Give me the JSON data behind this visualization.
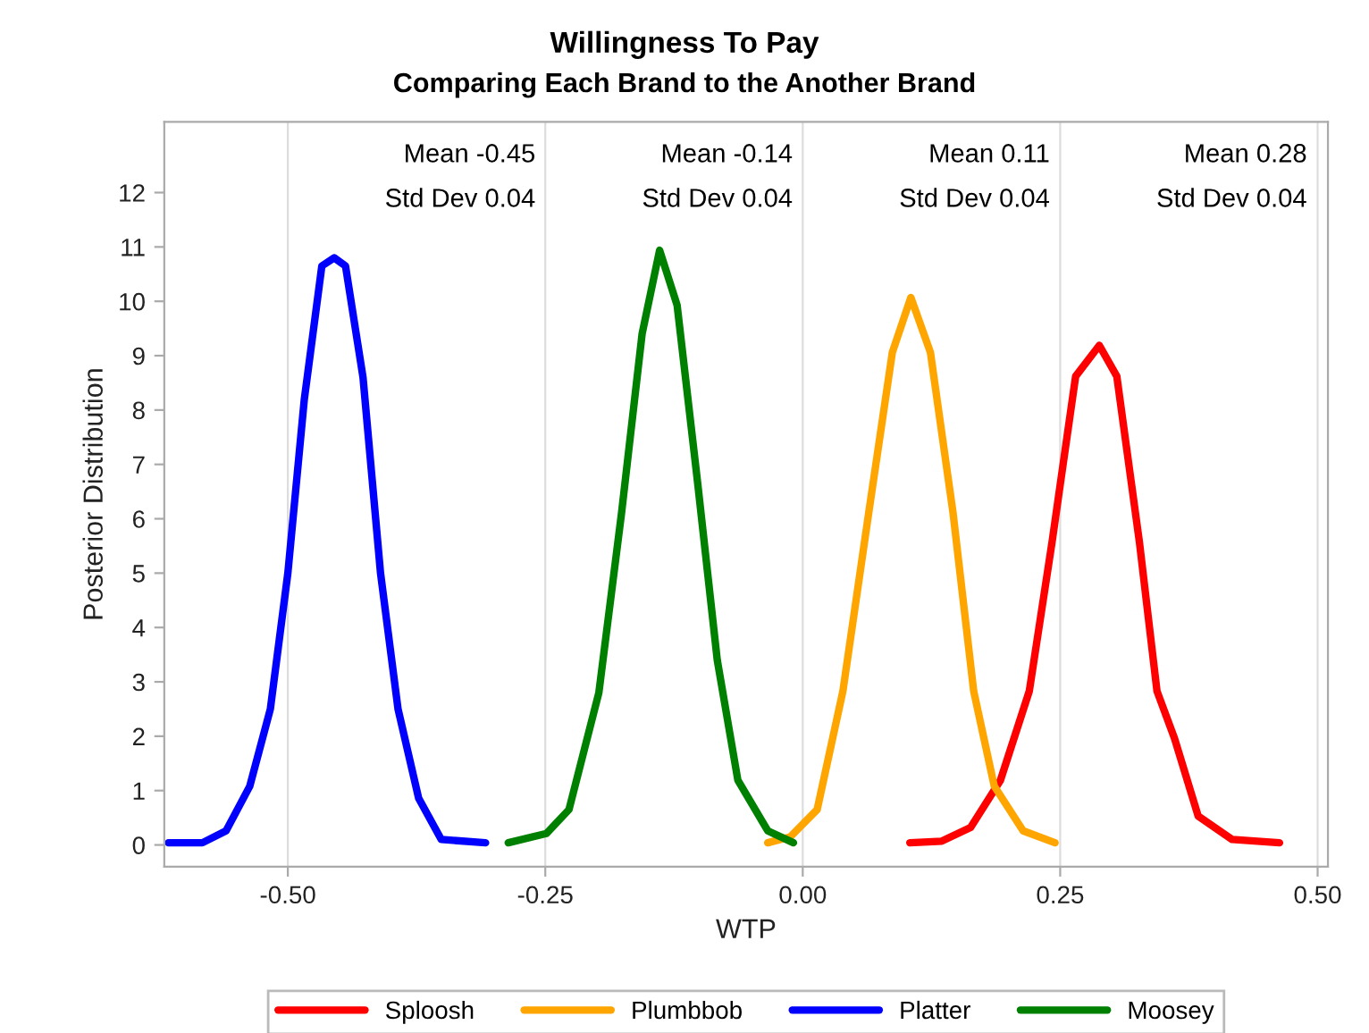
{
  "chart_data": {
    "type": "line",
    "title": "Willingness To Pay",
    "subtitle": "Comparing Each Brand to the Another Brand",
    "xlabel": "WTP",
    "ylabel": "Posterior Distribution",
    "annotations": [
      "Mean -0.45",
      "Std Dev 0.04",
      "Mean -0.14",
      "Std Dev 0.04",
      "Mean 0.11",
      "Std Dev 0.04",
      "Mean 0.28",
      "Std Dev 0.04"
    ],
    "xlim": [
      -0.62,
      0.51
    ],
    "ylim": [
      -0.4,
      13.3
    ],
    "xticks": [
      {
        "value": -0.5,
        "label": "-0.50"
      },
      {
        "value": -0.25,
        "label": "-0.25"
      },
      {
        "value": 0,
        "label": "0.00"
      },
      {
        "value": 0.25,
        "label": "0.25"
      },
      {
        "value": 0.5,
        "label": "0.50"
      }
    ],
    "yticks": [
      0,
      1,
      2,
      3,
      4,
      5,
      6,
      7,
      8,
      9,
      10,
      11,
      12
    ],
    "grid": "x",
    "legend": "bottom",
    "marker": "none",
    "line_style": "solid",
    "series": [
      {
        "name": "Sploosh",
        "color": "#ff0000",
        "x": [
          0.104,
          0.135,
          0.163,
          0.192,
          0.22,
          0.242,
          0.265,
          0.288,
          0.305,
          0.327,
          0.344,
          0.361,
          0.384,
          0.417,
          0.463
        ],
        "values": [
          0.04,
          0.07,
          0.32,
          1.19,
          2.83,
          5.56,
          8.62,
          9.19,
          8.62,
          5.56,
          2.83,
          1.96,
          0.53,
          0.1,
          0.04
        ]
      },
      {
        "name": "Plumbbob",
        "color": "#ffa500",
        "x": [
          -0.034,
          -0.012,
          0.014,
          0.039,
          0.064,
          0.087,
          0.105,
          0.124,
          0.146,
          0.166,
          0.186,
          0.214,
          0.245
        ],
        "values": [
          0.04,
          0.15,
          0.65,
          2.83,
          6.1,
          9.06,
          10.07,
          9.06,
          6.1,
          2.83,
          1.08,
          0.26,
          0.04
        ]
      },
      {
        "name": "Platter",
        "color": "#0000ff",
        "x": [
          -0.616,
          -0.583,
          -0.56,
          -0.537,
          -0.517,
          -0.5,
          -0.484,
          -0.467,
          -0.455,
          -0.444,
          -0.427,
          -0.41,
          -0.393,
          -0.373,
          -0.351,
          -0.308
        ],
        "values": [
          0.04,
          0.04,
          0.26,
          1.08,
          2.5,
          5.0,
          8.2,
          10.65,
          10.8,
          10.65,
          8.6,
          5.0,
          2.5,
          0.86,
          0.1,
          0.04
        ]
      },
      {
        "name": "Moosey",
        "color": "#008000",
        "x": [
          -0.286,
          -0.249,
          -0.227,
          -0.198,
          -0.176,
          -0.156,
          -0.139,
          -0.122,
          -0.102,
          -0.083,
          -0.063,
          -0.034,
          -0.009
        ],
        "values": [
          0.04,
          0.21,
          0.65,
          2.8,
          6.1,
          9.4,
          10.94,
          9.93,
          6.65,
          3.4,
          1.19,
          0.26,
          0.04
        ]
      }
    ]
  }
}
